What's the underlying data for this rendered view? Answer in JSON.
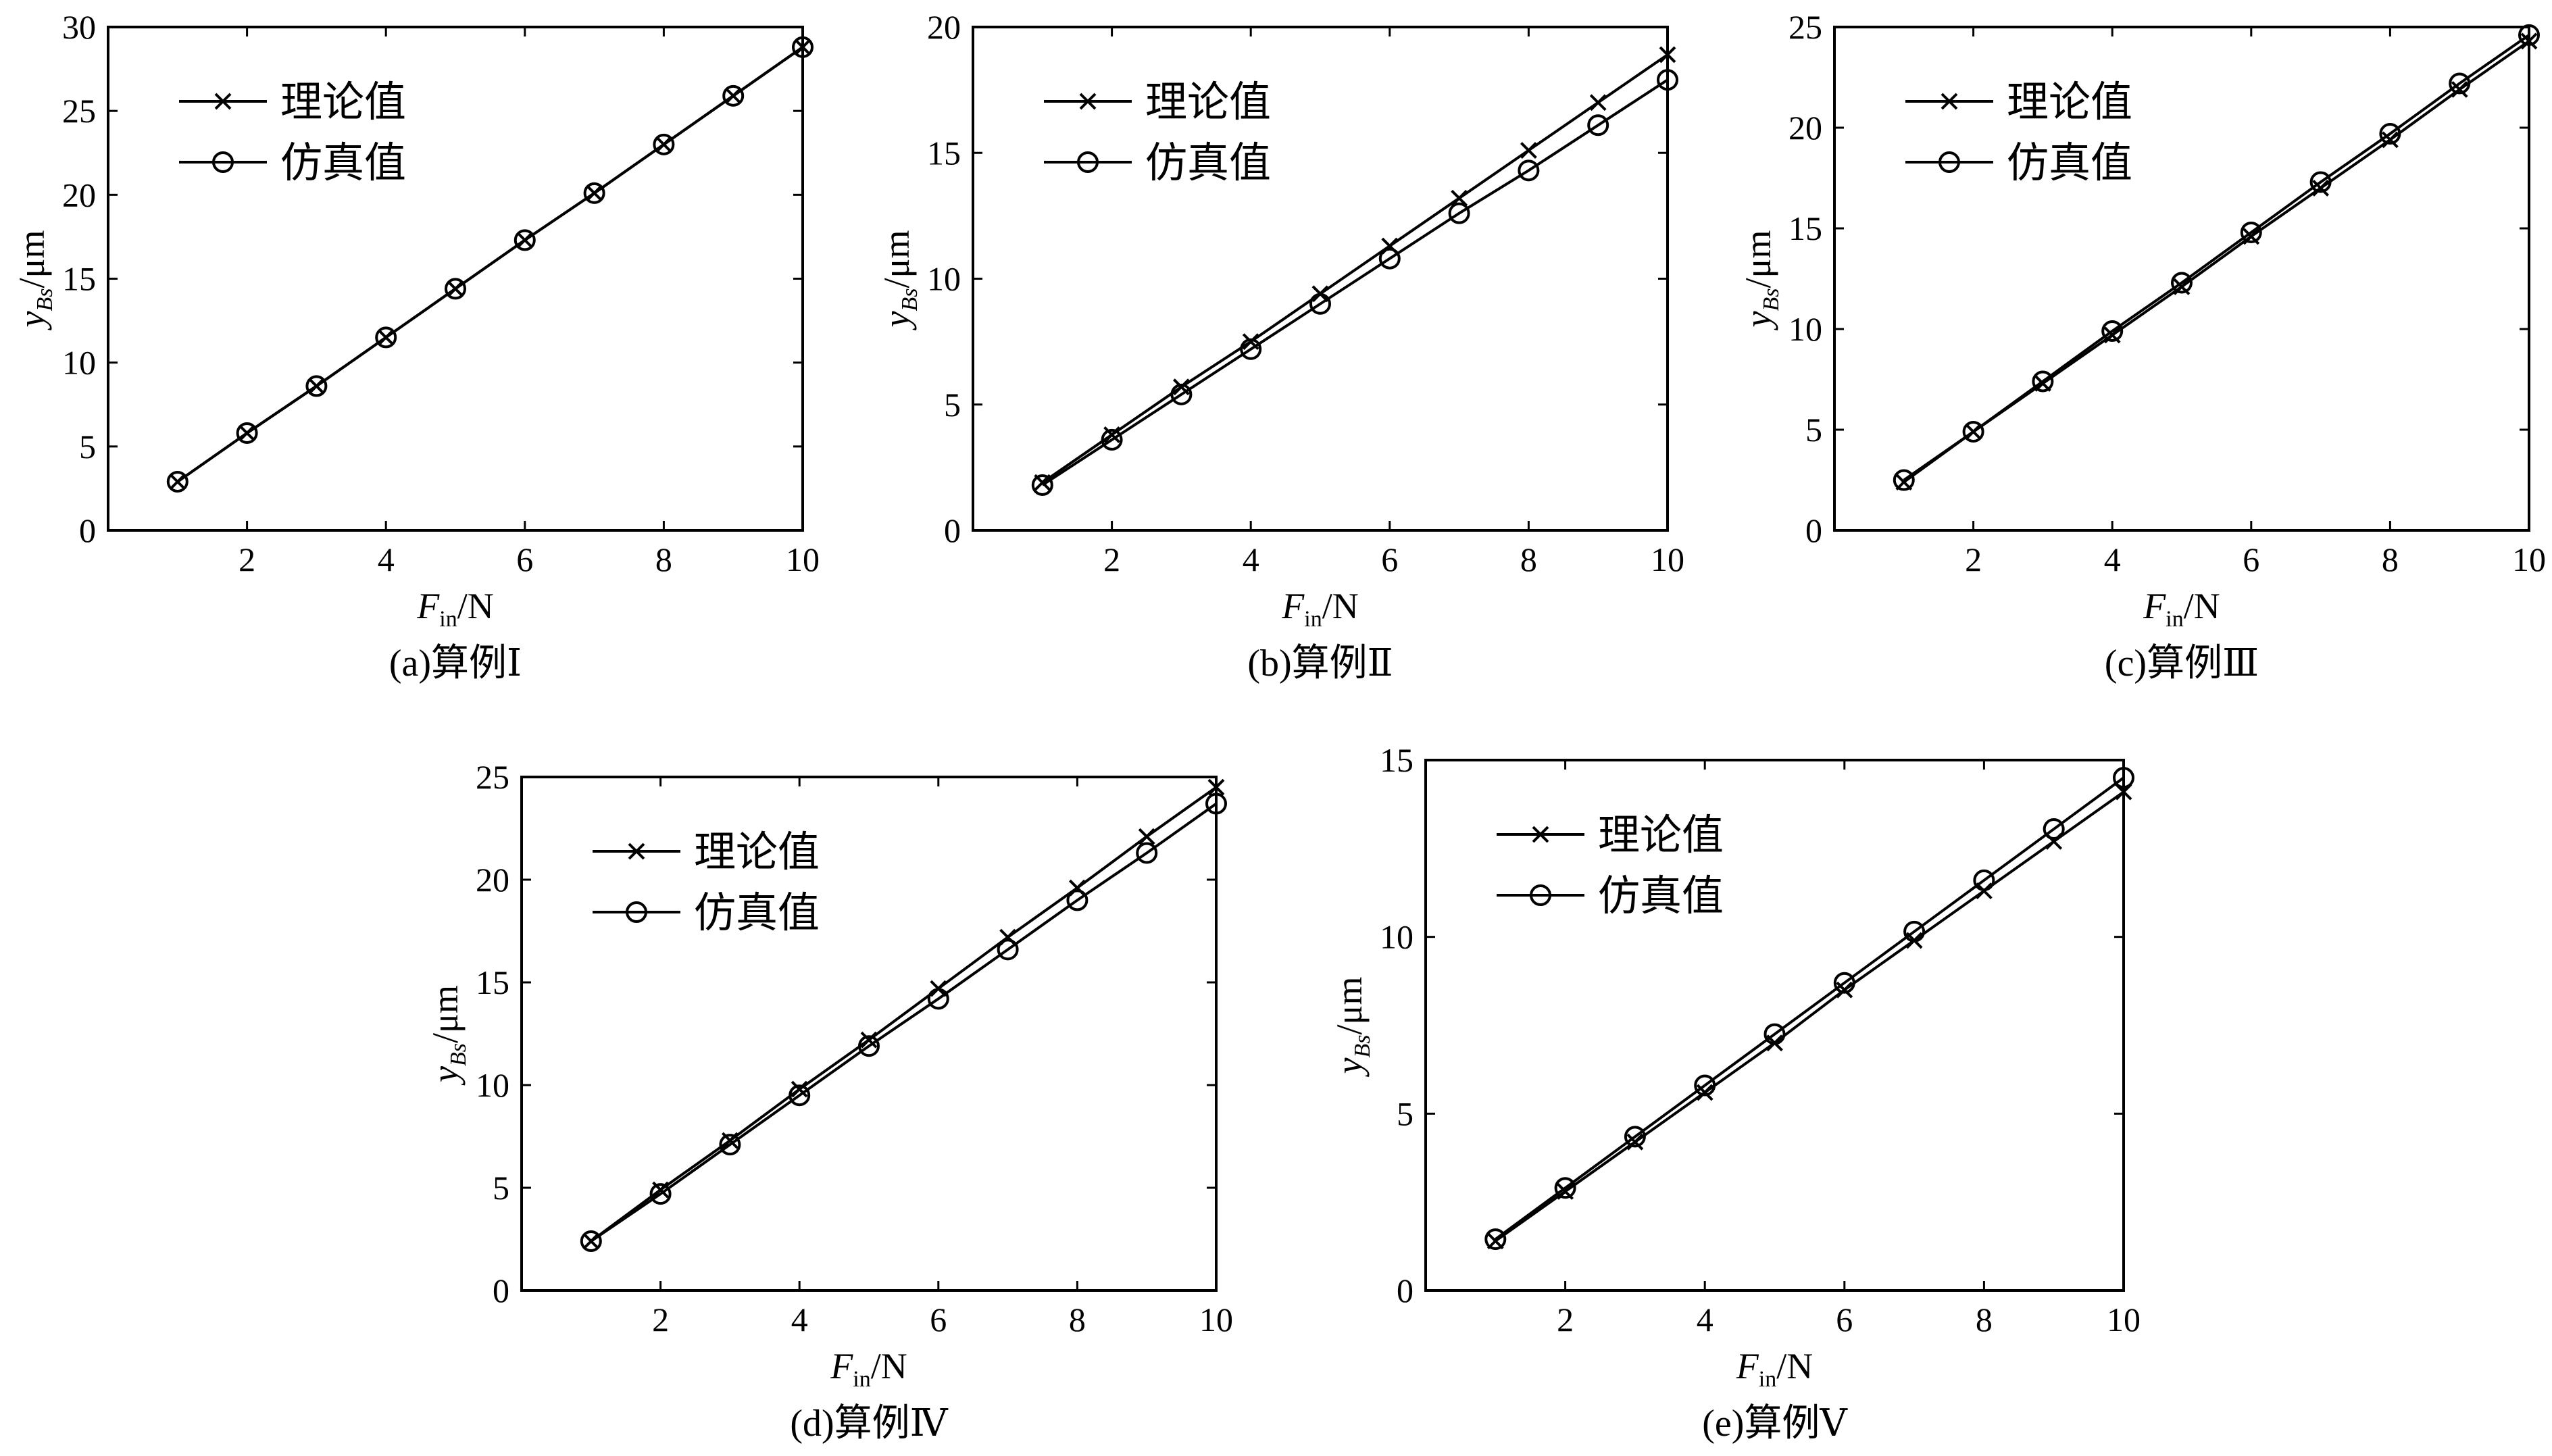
{
  "legend": {
    "theory_label": "理论值",
    "sim_label": "仿真值"
  },
  "xlabel": {
    "main": "F",
    "sub": "in",
    "unit": "/N"
  },
  "ylabel": {
    "main": "y",
    "sub": "Bs",
    "unit": "/μm"
  },
  "chart_data": [
    {
      "type": "line",
      "caption": "(a)算例Ⅰ",
      "x": [
        1,
        2,
        3,
        4,
        5,
        6,
        7,
        8,
        9,
        10
      ],
      "xlim": [
        0,
        10
      ],
      "xticks": [
        2,
        4,
        6,
        8,
        10
      ],
      "ylim": [
        0,
        30
      ],
      "yticks": [
        0,
        5,
        10,
        15,
        20,
        25,
        30
      ],
      "series": [
        {
          "name": "理论值",
          "marker": "x",
          "values": [
            2.9,
            5.8,
            8.6,
            11.5,
            14.4,
            17.3,
            20.1,
            23.0,
            25.9,
            28.8
          ]
        },
        {
          "name": "仿真值",
          "marker": "o",
          "values": [
            2.9,
            5.8,
            8.6,
            11.5,
            14.4,
            17.3,
            20.1,
            23.0,
            25.9,
            28.8
          ]
        }
      ]
    },
    {
      "type": "line",
      "caption": "(b)算例Ⅱ",
      "x": [
        1,
        2,
        3,
        4,
        5,
        6,
        7,
        8,
        9,
        10
      ],
      "xlim": [
        0,
        10
      ],
      "xticks": [
        2,
        4,
        6,
        8,
        10
      ],
      "ylim": [
        0,
        20
      ],
      "yticks": [
        0,
        5,
        10,
        15,
        20
      ],
      "series": [
        {
          "name": "理论值",
          "marker": "x",
          "values": [
            1.9,
            3.8,
            5.7,
            7.5,
            9.4,
            11.3,
            13.2,
            15.1,
            17.0,
            18.9
          ]
        },
        {
          "name": "仿真值",
          "marker": "o",
          "values": [
            1.8,
            3.6,
            5.4,
            7.2,
            9.0,
            10.8,
            12.6,
            14.3,
            16.1,
            17.9
          ]
        }
      ]
    },
    {
      "type": "line",
      "caption": "(c)算例Ⅲ",
      "x": [
        1,
        2,
        3,
        4,
        5,
        6,
        7,
        8,
        9,
        10
      ],
      "xlim": [
        0,
        10
      ],
      "xticks": [
        2,
        4,
        6,
        8,
        10
      ],
      "ylim": [
        0,
        25
      ],
      "yticks": [
        0,
        5,
        10,
        15,
        20,
        25
      ],
      "series": [
        {
          "name": "理论值",
          "marker": "x",
          "values": [
            2.4,
            4.9,
            7.3,
            9.7,
            12.1,
            14.6,
            17.0,
            19.4,
            21.9,
            24.3
          ]
        },
        {
          "name": "仿真值",
          "marker": "o",
          "values": [
            2.5,
            4.9,
            7.4,
            9.9,
            12.3,
            14.8,
            17.3,
            19.7,
            22.2,
            24.6
          ]
        }
      ]
    },
    {
      "type": "line",
      "caption": "(d)算例Ⅳ",
      "x": [
        1,
        2,
        3,
        4,
        5,
        6,
        7,
        8,
        9,
        10
      ],
      "xlim": [
        0,
        10
      ],
      "xticks": [
        2,
        4,
        6,
        8,
        10
      ],
      "ylim": [
        0,
        25
      ],
      "yticks": [
        0,
        5,
        10,
        15,
        20,
        25
      ],
      "series": [
        {
          "name": "理论值",
          "marker": "x",
          "values": [
            2.4,
            4.9,
            7.3,
            9.8,
            12.2,
            14.7,
            17.2,
            19.6,
            22.1,
            24.5
          ]
        },
        {
          "name": "仿真值",
          "marker": "o",
          "values": [
            2.4,
            4.7,
            7.1,
            9.5,
            11.9,
            14.2,
            16.6,
            19.0,
            21.3,
            23.7
          ]
        }
      ]
    },
    {
      "type": "line",
      "caption": "(e)算例Ⅴ",
      "x": [
        1,
        2,
        3,
        4,
        5,
        6,
        7,
        8,
        9,
        10
      ],
      "xlim": [
        0,
        10
      ],
      "xticks": [
        2,
        4,
        6,
        8,
        10
      ],
      "ylim": [
        0,
        15
      ],
      "yticks": [
        0,
        5,
        10,
        15
      ],
      "series": [
        {
          "name": "理论值",
          "marker": "x",
          "values": [
            1.4,
            2.8,
            4.2,
            5.6,
            7.0,
            8.5,
            9.9,
            11.3,
            12.7,
            14.1
          ]
        },
        {
          "name": "仿真值",
          "marker": "o",
          "values": [
            1.45,
            2.9,
            4.35,
            5.8,
            7.25,
            8.7,
            10.15,
            11.6,
            13.05,
            14.5
          ]
        }
      ]
    }
  ]
}
